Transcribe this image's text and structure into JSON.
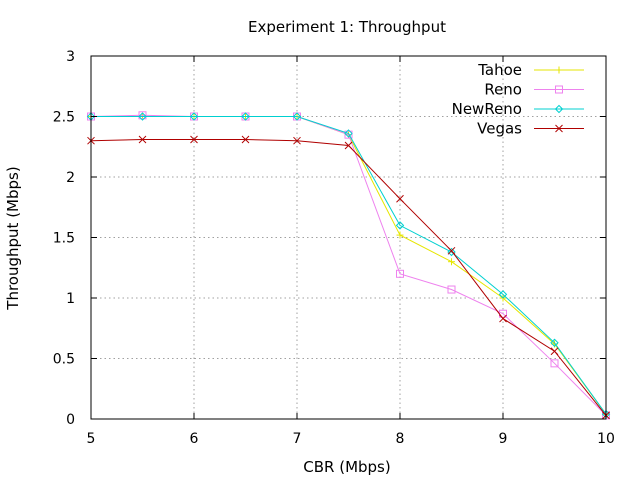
{
  "chart_data": {
    "type": "line",
    "title": "Experiment 1: Throughput",
    "xlabel": "CBR (Mbps)",
    "ylabel": "Throughput (Mbps)",
    "xlim": [
      5,
      10
    ],
    "ylim": [
      0,
      3
    ],
    "xticks": [
      5,
      6,
      7,
      8,
      9,
      10
    ],
    "yticks": [
      0,
      0.5,
      1,
      1.5,
      2,
      2.5,
      3
    ],
    "ytick_labels": [
      "0",
      "0.5",
      "1",
      "1.5",
      "2",
      "2.5",
      "3"
    ],
    "grid": true,
    "legend_position": "top-right",
    "series": [
      {
        "name": "Tahoe",
        "color": "#e6e600",
        "marker": "plus",
        "x": [
          5,
          5.5,
          6,
          6.5,
          7,
          7.5,
          8,
          8.5,
          9,
          9.5,
          10
        ],
        "y": [
          2.5,
          2.5,
          2.5,
          2.5,
          2.5,
          2.35,
          1.52,
          1.3,
          1.0,
          0.62,
          0.04
        ]
      },
      {
        "name": "Reno",
        "color": "#ee82ee",
        "marker": "square",
        "x": [
          5,
          5.5,
          6,
          6.5,
          7,
          7.5,
          8,
          8.5,
          9,
          9.5,
          10
        ],
        "y": [
          2.5,
          2.51,
          2.5,
          2.5,
          2.5,
          2.35,
          1.2,
          1.07,
          0.87,
          0.46,
          0.03
        ]
      },
      {
        "name": "NewReno",
        "color": "#00d0d0",
        "marker": "diamond",
        "x": [
          5,
          5.5,
          6,
          6.5,
          7,
          7.5,
          8,
          8.5,
          9,
          9.5,
          10
        ],
        "y": [
          2.5,
          2.5,
          2.5,
          2.5,
          2.5,
          2.36,
          1.6,
          1.38,
          1.03,
          0.63,
          0.04
        ]
      },
      {
        "name": "Vegas",
        "color": "#b00000",
        "marker": "cross",
        "x": [
          5,
          5.5,
          6,
          6.5,
          7,
          7.5,
          8,
          8.5,
          9,
          9.5,
          10
        ],
        "y": [
          2.3,
          2.31,
          2.31,
          2.31,
          2.3,
          2.26,
          1.82,
          1.39,
          0.83,
          0.56,
          0.03
        ]
      }
    ]
  }
}
